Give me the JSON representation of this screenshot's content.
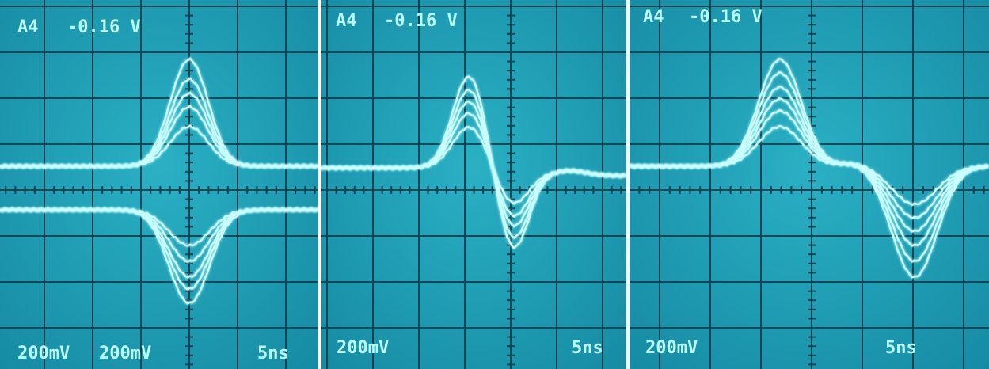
{
  "panels": [
    {
      "channel": "A4",
      "offset": "-0.16 V",
      "scales": [
        "200mV",
        "200mV"
      ],
      "timebase": "5ns"
    },
    {
      "channel": "A4",
      "offset": "-0.16 V",
      "scales": [
        "200mV"
      ],
      "timebase": "5ns"
    },
    {
      "channel": "A4",
      "offset": "-0.16 V",
      "scales": [
        "200mV"
      ],
      "timebase": "5ns"
    }
  ]
}
